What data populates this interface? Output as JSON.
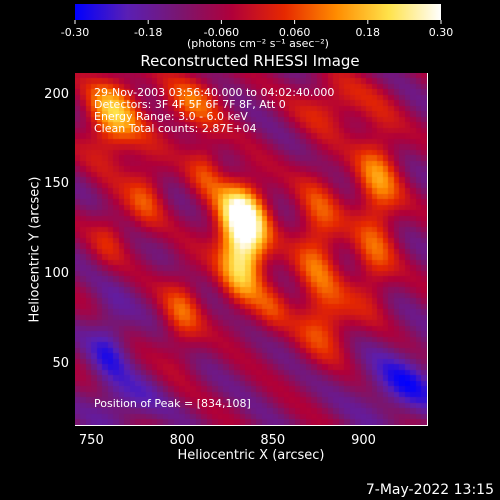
{
  "chart_data": {
    "type": "heatmap",
    "title": "Reconstructed RHESSI Image",
    "xlabel": "Heliocentric X (arcsec)",
    "ylabel": "Heliocentric Y (arcsec)",
    "xlim": [
      741,
      935
    ],
    "ylim": [
      16,
      212
    ],
    "xticks": [
      "750",
      "800",
      "850",
      "900"
    ],
    "xtick_values": [
      750,
      800,
      850,
      900
    ],
    "yticks": [
      "50",
      "100",
      "150",
      "200"
    ],
    "ytick_values": [
      50,
      100,
      150,
      200
    ],
    "colorbar": {
      "ticks": [
        "-0.30",
        "-0.18",
        "-0.060",
        "0.060",
        "0.18",
        "0.30"
      ],
      "tick_values": [
        -0.3,
        -0.18,
        -0.06,
        0.06,
        0.18,
        0.3
      ],
      "range": [
        -0.3,
        0.3
      ],
      "unit_label": "(photons cm⁻² s⁻¹ asec⁻²)",
      "colors": [
        "#0000ff",
        "#5a1fb4",
        "#7a1670",
        "#b0003a",
        "#e62800",
        "#ff8c00",
        "#ffe24a",
        "#ffffff"
      ]
    },
    "annotations": [
      "29-Nov-2003 03:56:40.000 to 04:02:40.000",
      "Detectors: 3F 4F 5F 6F 7F 8F, Att 0",
      "Energy Range: 3.0 - 6.0 keV",
      "Clean     Total counts: 2.87E+04"
    ],
    "peak_label": "Position of Peak = [834,108]",
    "peak": [
      834,
      108
    ],
    "grid": false,
    "legend": "none",
    "background_level": -0.1,
    "features": [
      {
        "x": 834,
        "y": 115,
        "sx": 9,
        "sy": 20,
        "amp": 0.38
      },
      {
        "x": 831,
        "y": 135,
        "sx": 11,
        "sy": 13,
        "amp": 0.2
      },
      {
        "x": 762,
        "y": 188,
        "sx": 11,
        "sy": 17,
        "amp": 0.26
      },
      {
        "x": 805,
        "y": 195,
        "sx": 12,
        "sy": 13,
        "amp": 0.16
      },
      {
        "x": 883,
        "y": 195,
        "sx": 14,
        "sy": 11,
        "amp": 0.13
      },
      {
        "x": 908,
        "y": 150,
        "sx": 9,
        "sy": 26,
        "amp": 0.2
      },
      {
        "x": 875,
        "y": 118,
        "sx": 9,
        "sy": 28,
        "amp": 0.18
      },
      {
        "x": 880,
        "y": 72,
        "sx": 11,
        "sy": 14,
        "amp": 0.14
      },
      {
        "x": 800,
        "y": 78,
        "sx": 8,
        "sy": 18,
        "amp": 0.15
      },
      {
        "x": 850,
        "y": 82,
        "sx": 7,
        "sy": 11,
        "amp": 0.1
      },
      {
        "x": 780,
        "y": 145,
        "sx": 8,
        "sy": 16,
        "amp": 0.14
      },
      {
        "x": 813,
        "y": 160,
        "sx": 7,
        "sy": 13,
        "amp": 0.12
      },
      {
        "x": 760,
        "y": 122,
        "sx": 7,
        "sy": 13,
        "amp": 0.1
      },
      {
        "x": 905,
        "y": 100,
        "sx": 8,
        "sy": 16,
        "amp": 0.11
      },
      {
        "x": 760,
        "y": 60,
        "sx": 8,
        "sy": 18,
        "amp": -0.12
      },
      {
        "x": 922,
        "y": 38,
        "sx": 16,
        "sy": 14,
        "amp": -0.14
      },
      {
        "x": 770,
        "y": 28,
        "sx": 12,
        "sy": 10,
        "amp": -0.1
      }
    ]
  },
  "footer": {
    "timestamp": "7-May-2022 13:15"
  }
}
